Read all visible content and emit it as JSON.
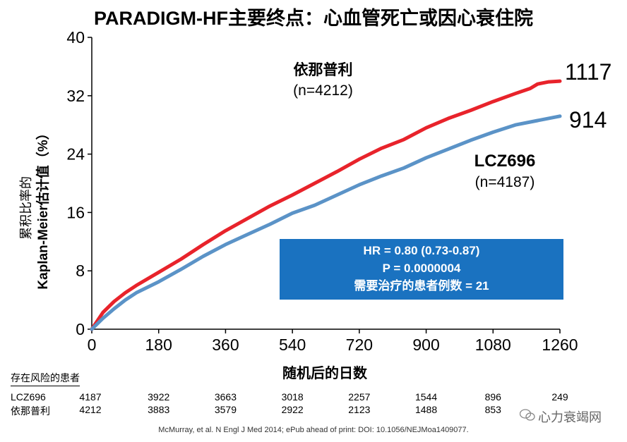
{
  "title": "PARADIGM-HF主要终点：心血管死亡或因心衰住院",
  "chart_data": {
    "type": "line",
    "ylabel_line1": "累积比率的",
    "ylabel_line2": "Kaplan-Meier估计值（%）",
    "xlabel": "随机后的日数",
    "xlim": [
      0,
      1260
    ],
    "ylim": [
      0,
      40
    ],
    "x_ticks": [
      "0",
      "180",
      "360",
      "540",
      "720",
      "900",
      "1080",
      "1260"
    ],
    "y_ticks": [
      "0",
      "8",
      "16",
      "24",
      "32",
      "40"
    ],
    "series": [
      {
        "name": "依那普利",
        "n_label": "(n=4212)",
        "events": "1117",
        "color": "#e8232b",
        "x": [
          0,
          30,
          60,
          90,
          120,
          180,
          240,
          300,
          360,
          420,
          480,
          540,
          600,
          660,
          720,
          780,
          840,
          900,
          960,
          1020,
          1080,
          1140,
          1180,
          1200,
          1230,
          1260
        ],
        "y": [
          0,
          2.3,
          3.8,
          5.0,
          6.0,
          7.8,
          9.6,
          11.6,
          13.5,
          15.2,
          16.9,
          18.4,
          20.0,
          21.6,
          23.3,
          24.8,
          26.0,
          27.6,
          28.9,
          30.0,
          31.2,
          32.3,
          33.0,
          33.6,
          33.9,
          34.0
        ]
      },
      {
        "name": "LCZ696",
        "n_label": "(n=4187)",
        "events": "914",
        "color": "#5b93c7",
        "x": [
          0,
          30,
          60,
          90,
          120,
          180,
          240,
          300,
          360,
          420,
          480,
          540,
          600,
          660,
          720,
          780,
          840,
          900,
          960,
          1020,
          1080,
          1140,
          1200,
          1260
        ],
        "y": [
          0,
          1.5,
          2.8,
          4.0,
          5.0,
          6.5,
          8.2,
          10.0,
          11.6,
          13.0,
          14.4,
          15.9,
          17.0,
          18.4,
          19.8,
          21.0,
          22.1,
          23.5,
          24.7,
          25.9,
          27.0,
          28.0,
          28.6,
          29.2
        ]
      }
    ],
    "stats": {
      "line1": "HR = 0.80 (0.73-0.87)",
      "line2": "P = 0.0000004",
      "line3": "需要治疗的患者例数 = 21"
    },
    "at_risk": {
      "title": "存在风险的患者",
      "rows": [
        {
          "label": "LCZ696",
          "values": [
            "4187",
            "3922",
            "3663",
            "3018",
            "2257",
            "1544",
            "896",
            "249"
          ]
        },
        {
          "label": "依那普利",
          "values": [
            "4212",
            "3883",
            "3579",
            "2922",
            "2123",
            "1488",
            "853",
            ""
          ]
        }
      ]
    }
  },
  "citation": "McMurray, et al. N Engl J Med 2014;  ePub ahead of print: DOI: 10.1056/NEJMoa1409077.",
  "watermark": {
    "icon": "wechat-icon",
    "text": "心力衰竭网"
  }
}
